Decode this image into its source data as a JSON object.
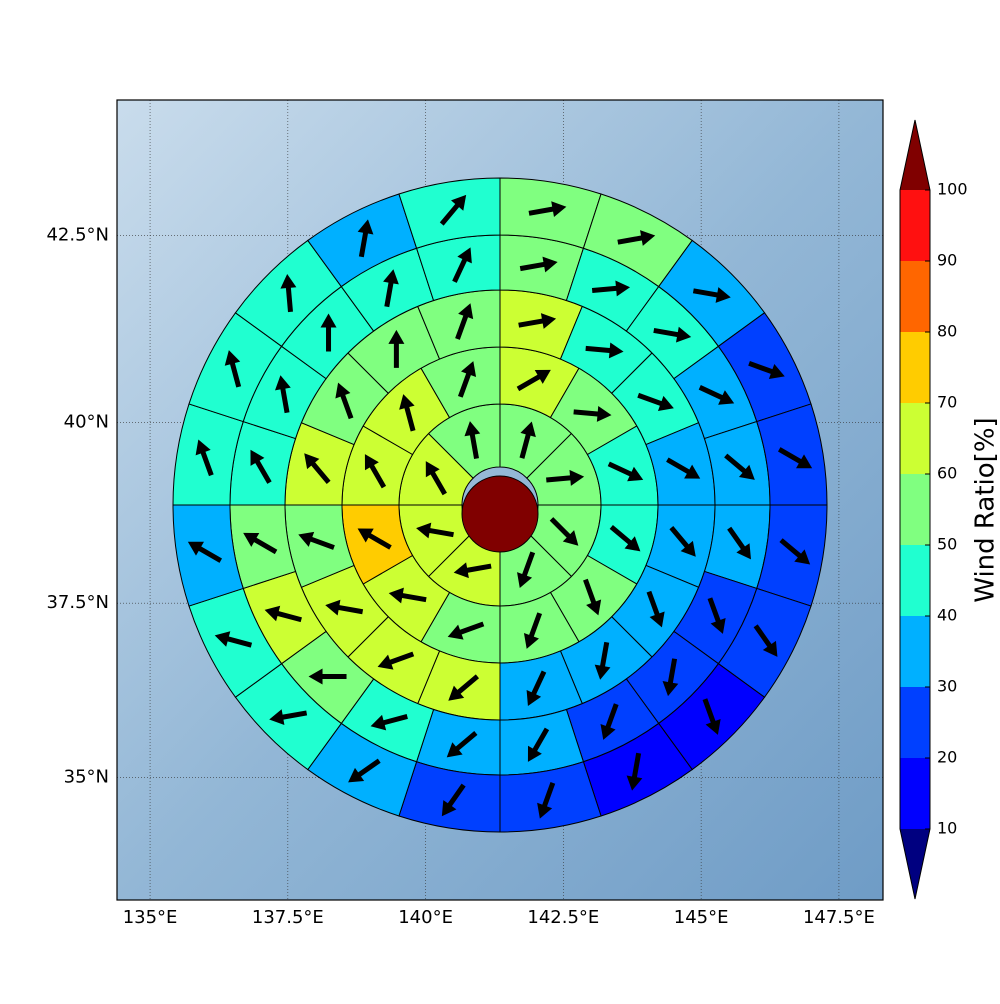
{
  "chart_data": {
    "type": "polar-sector-map",
    "xlim": [
      134.4,
      148.3
    ],
    "ylim": [
      33.2,
      44.25
    ],
    "xticks": [
      {
        "value": 135,
        "label": "135°E"
      },
      {
        "value": 137.5,
        "label": "137.5°E"
      },
      {
        "value": 140,
        "label": "140°E"
      },
      {
        "value": 142.5,
        "label": "142.5°E"
      },
      {
        "value": 145,
        "label": "145°E"
      },
      {
        "value": 147.5,
        "label": "147.5°E"
      }
    ],
    "yticks": [
      {
        "value": 35,
        "label": "35°N"
      },
      {
        "value": 37.5,
        "label": "37.5°N"
      },
      {
        "value": 40,
        "label": "40°N"
      },
      {
        "value": 42.5,
        "label": "42.5°N"
      }
    ],
    "grid": true,
    "rings": [
      {
        "values": [
          55,
          55,
          55,
          55,
          65,
          65,
          65,
          55
        ],
        "directions": [
          15,
          85,
          135,
          200,
          260,
          280,
          330,
          350
        ]
      },
      {
        "values": [
          65,
          55,
          45,
          45,
          55,
          55,
          55,
          65,
          75,
          65,
          65,
          55
        ],
        "directions": [
          60,
          95,
          115,
          130,
          160,
          200,
          250,
          280,
          300,
          330,
          345,
          20
        ]
      },
      {
        "values": [
          65,
          45,
          45,
          35,
          35,
          35,
          35,
          35,
          65,
          65,
          65,
          55,
          65,
          55,
          55,
          55
        ],
        "directions": [
          80,
          95,
          110,
          120,
          140,
          160,
          190,
          205,
          230,
          250,
          280,
          290,
          320,
          340,
          0,
          20
        ]
      },
      {
        "values": [
          55,
          45,
          45,
          35,
          35,
          35,
          25,
          25,
          25,
          35,
          35,
          45,
          55,
          65,
          55,
          45,
          45,
          45,
          45,
          45
        ],
        "directions": [
          80,
          85,
          100,
          115,
          130,
          145,
          160,
          190,
          200,
          210,
          230,
          255,
          270,
          285,
          300,
          330,
          350,
          0,
          10,
          25
        ]
      },
      {
        "values": [
          55,
          55,
          35,
          25,
          25,
          25,
          25,
          15,
          15,
          25,
          25,
          35,
          45,
          45,
          35,
          45,
          45,
          45,
          35,
          45
        ],
        "directions": [
          80,
          80,
          100,
          110,
          120,
          130,
          145,
          160,
          190,
          200,
          215,
          235,
          260,
          285,
          300,
          340,
          345,
          355,
          10,
          40
        ]
      }
    ],
    "colorbar": {
      "label": "Wind Ratio[%]",
      "bounds": [
        10,
        20,
        30,
        40,
        50,
        60,
        70,
        80,
        90,
        100
      ],
      "colors": [
        "#0000ff",
        "#0040ff",
        "#00b0ff",
        "#20ffd0",
        "#80ff80",
        "#ccff33",
        "#ffcc00",
        "#ff6600",
        "#ff1010"
      ],
      "under_color": "#000080",
      "over_color": "#800000"
    }
  }
}
